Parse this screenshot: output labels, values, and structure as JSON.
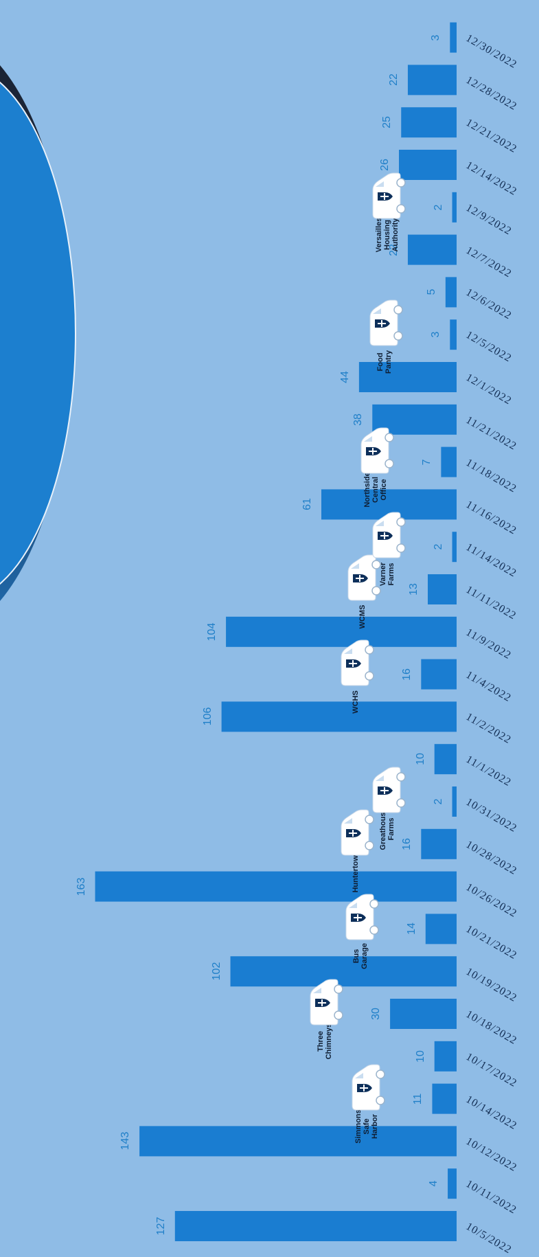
{
  "colors": {
    "background": "#8fbce6",
    "bar": "#1a7dd1",
    "value_label": "#1f7fc8",
    "axis_label": "#142f55",
    "van": "#ffffff",
    "shield": "#0d2f5a"
  },
  "icons": {
    "van": "van-icon",
    "shield": "shield-cross-icon"
  },
  "chart_data": {
    "type": "bar",
    "orientation": "horizontal",
    "title": "",
    "xlabel": "",
    "ylabel": "",
    "xlim": [
      0,
      170
    ],
    "grid": false,
    "legend": "none",
    "categories": [
      "10/5/2022",
      "10/11/2022",
      "10/12/2022",
      "10/14/2022",
      "10/17/2022",
      "10/18/2022",
      "10/19/2022",
      "10/21/2022",
      "10/26/2022",
      "10/28/2022",
      "10/31/2022",
      "11/1/2022",
      "11/2/2022",
      "11/4/2022",
      "11/9/2022",
      "11/11/2022",
      "11/14/2022",
      "11/16/2022",
      "11/18/2022",
      "11/21/2022",
      "12/1/2022",
      "12/5/2022",
      "12/6/2022",
      "12/7/2022",
      "12/9/2022",
      "12/14/2022",
      "12/21/2022",
      "12/28/2022",
      "12/30/2022"
    ],
    "values": [
      127,
      4,
      143,
      11,
      10,
      30,
      102,
      14,
      163,
      16,
      2,
      10,
      106,
      16,
      104,
      13,
      2,
      61,
      7,
      38,
      44,
      3,
      5,
      22,
      2,
      26,
      25,
      22,
      3
    ],
    "value_labels": [
      "127",
      "4",
      "143",
      "11",
      "10",
      "30",
      "102",
      "14",
      "163",
      "16",
      "2",
      "10",
      "106",
      "16",
      "104",
      "13",
      "2",
      "61",
      "7",
      "38",
      "44",
      "3",
      "5",
      "22",
      "2",
      "26",
      "25",
      "22",
      "3"
    ],
    "annotations": [
      {
        "index": 3,
        "label": "Simmons Safe Harbor",
        "lines": [
          "Simmons",
          "Safe Harbor"
        ]
      },
      {
        "index": 5,
        "label": "Three Chimneys",
        "lines": [
          "Three",
          "Chimneys"
        ]
      },
      {
        "index": 7,
        "label": "Bus Garage",
        "lines": [
          "Bus Garage"
        ]
      },
      {
        "index": 9,
        "label": "Huntertown",
        "lines": [
          "Huntertown"
        ]
      },
      {
        "index": 10,
        "label": "Greathouse Farms",
        "lines": [
          "Greathouse",
          "Farms"
        ]
      },
      {
        "index": 13,
        "label": "WCHS",
        "lines": [
          "WCHS"
        ]
      },
      {
        "index": 15,
        "label": "WCMS",
        "lines": [
          "WCMS"
        ]
      },
      {
        "index": 16,
        "label": "Varner Farms",
        "lines": [
          "Varner",
          "Farms"
        ]
      },
      {
        "index": 18,
        "label": "Northside Central Office",
        "lines": [
          "Northside",
          "Central",
          "Office"
        ]
      },
      {
        "index": 21,
        "label": "Food Pantry",
        "lines": [
          "Food Pantry"
        ]
      },
      {
        "index": 24,
        "label": "Versailles Housing Authority",
        "lines": [
          "Versailles",
          "Housing",
          "Authority"
        ]
      }
    ]
  }
}
